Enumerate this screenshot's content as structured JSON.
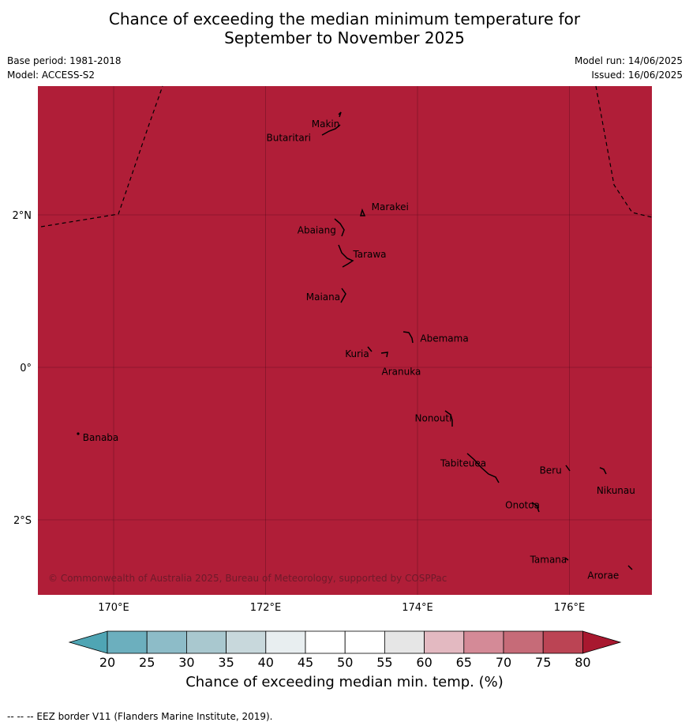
{
  "title_line1": "Chance of exceeding the median minimum temperature for",
  "title_line2": "September to November 2025",
  "meta_left": [
    "Base period: 1981-2018",
    "Model: ACCESS-S2"
  ],
  "meta_right": [
    "Model run: 14/06/2025",
    "Issued: 16/06/2025"
  ],
  "map": {
    "fill_color": "#b01e38",
    "lon_ticks": [
      {
        "lon": 170,
        "label": "170°E"
      },
      {
        "lon": 172,
        "label": "172°E"
      },
      {
        "lon": 174,
        "label": "174°E"
      },
      {
        "lon": 176,
        "label": "176°E"
      }
    ],
    "lat_ticks": [
      {
        "lat": 2,
        "label": "2°N"
      },
      {
        "lat": 0,
        "label": "0°"
      },
      {
        "lat": -2,
        "label": "2°S"
      }
    ],
    "islands": [
      {
        "name": "Makin",
        "lon": 173.0,
        "lat": 3.2
      },
      {
        "name": "Butaritari",
        "lon": 172.8,
        "lat": 3.05
      },
      {
        "name": "Marakei",
        "lon": 173.3,
        "lat": 2.0
      },
      {
        "name": "Abaiang",
        "lon": 173.0,
        "lat": 1.8
      },
      {
        "name": "Tarawa",
        "lon": 173.1,
        "lat": 1.4
      },
      {
        "name": "Maiana",
        "lon": 173.0,
        "lat": 0.92
      },
      {
        "name": "Abemama",
        "lon": 173.9,
        "lat": 0.4
      },
      {
        "name": "Kuria",
        "lon": 173.4,
        "lat": 0.23
      },
      {
        "name": "Aranuka",
        "lon": 173.6,
        "lat": 0.17
      },
      {
        "name": "Nonouti",
        "lon": 174.4,
        "lat": -0.67
      },
      {
        "name": "Banaba",
        "lon": 169.53,
        "lat": -0.86
      },
      {
        "name": "Tabiteuea",
        "lon": 174.8,
        "lat": -1.3
      },
      {
        "name": "Beru",
        "lon": 175.98,
        "lat": -1.33
      },
      {
        "name": "Nikunau",
        "lon": 176.45,
        "lat": -1.37
      },
      {
        "name": "Onotoa",
        "lon": 175.56,
        "lat": -1.8
      },
      {
        "name": "Tamana",
        "lon": 175.98,
        "lat": -2.5
      },
      {
        "name": "Arorae",
        "lon": 176.82,
        "lat": -2.65
      }
    ],
    "copyright": "© Commonwealth of Australia 2025, Bureau of Meteorology, supported by COSPPac"
  },
  "colorbar": {
    "ticks": [
      "20",
      "25",
      "30",
      "35",
      "40",
      "45",
      "50",
      "55",
      "60",
      "65",
      "70",
      "75",
      "80"
    ],
    "colors": [
      "#6cafbe",
      "#8dbcc8",
      "#a9c8cf",
      "#c8d8dc",
      "#e8eef0",
      "#ffffff",
      "#ffffff",
      "#e6e6e6",
      "#e3b9c1",
      "#d48a97",
      "#c66b78",
      "#bb4454"
    ],
    "under_color": "#4fa5b4",
    "over_color": "#a8182f",
    "label": "Chance of exceeding median min. temp. (%)"
  },
  "footnote": "-- -- -- EEZ border V11 (Flanders Marine Institute, 2019)."
}
